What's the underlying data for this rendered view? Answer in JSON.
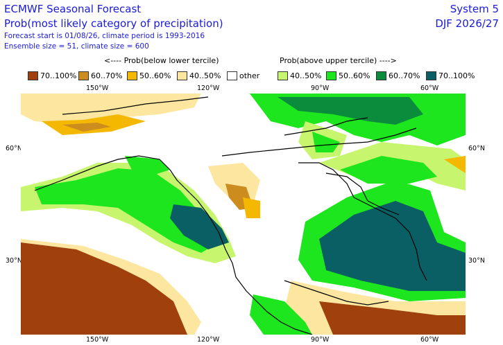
{
  "header": {
    "title": "ECMWF Seasonal Forecast",
    "subtitle": "Prob(most likely category of precipitation)",
    "forecast_info": "Forecast start is 01/08/26, climate period is 1993-2016",
    "ensemble_info": "Ensemble size = 51, climate size = 600",
    "system": "System 5",
    "season": "DJF 2026/27"
  },
  "legend": {
    "below_header": "<---- Prob(below lower tercile)",
    "above_header": "Prob(above upper tercile) ---->",
    "items": [
      {
        "label": "70..100%",
        "color": "#a0410d"
      },
      {
        "label": "60..70%",
        "color": "#cd8c1e"
      },
      {
        "label": "50..60%",
        "color": "#f5b800"
      },
      {
        "label": "40..50%",
        "color": "#fce6a0"
      },
      {
        "label": "other",
        "color": "#ffffff"
      },
      {
        "label": "40..50%",
        "color": "#c8f56e"
      },
      {
        "label": "50..60%",
        "color": "#1ee61e"
      },
      {
        "label": "60..70%",
        "color": "#0a8c3c"
      },
      {
        "label": "70..100%",
        "color": "#0a5f64"
      }
    ]
  },
  "axes": {
    "lon_top": [
      "150°W",
      "120°W",
      "90°W",
      "60°W"
    ],
    "lon_bottom": [
      "150°W",
      "120°W",
      "90°W",
      "60°W"
    ],
    "lat_left": [
      "60°N",
      "30°N"
    ],
    "lat_right": [
      "60°N",
      "30°N"
    ]
  },
  "map": {
    "region": "North America",
    "colors": {
      "land_outline": "#000000",
      "ocean_blank": "#ffffff"
    }
  }
}
